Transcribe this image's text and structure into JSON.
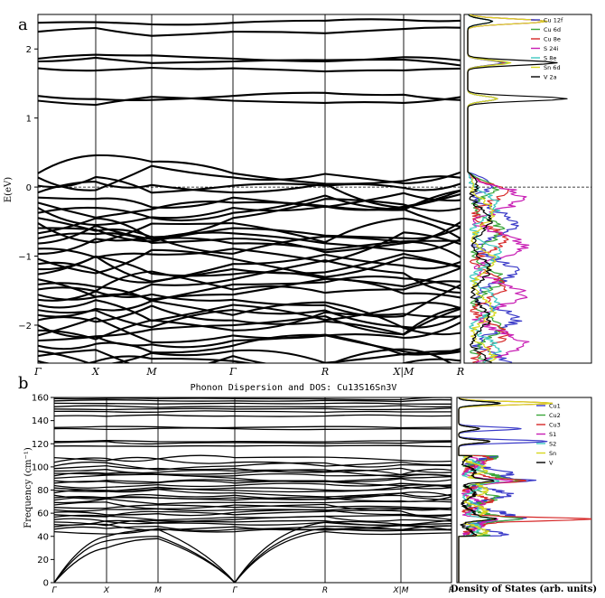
{
  "panels": [
    {
      "label": "a"
    },
    {
      "label": "b"
    }
  ],
  "chart_data": [
    {
      "type": "line",
      "title": "",
      "xlabel": "",
      "ylabel": "E(eV)",
      "ylim": [
        -2.55,
        2.5
      ],
      "y_ticks": [
        -2,
        -1,
        0,
        1,
        2
      ],
      "high_symmetry_points": [
        "Γ",
        "X",
        "M",
        "Γ",
        "R",
        "X|M",
        "R"
      ],
      "fermi_level": 0,
      "band_energies_at_gamma": [
        -2.5,
        -2.2,
        -2.0,
        -1.8,
        -1.6,
        -1.4,
        -1.2,
        -1.0,
        -0.8,
        -0.6,
        -0.4,
        0.0,
        0.2,
        1.25,
        1.3,
        1.75,
        1.85,
        2.25,
        2.4
      ],
      "dos_legend": [
        "Cu 12f",
        "Cu 6d",
        "Cu 8e",
        "S 24i",
        "S 8e",
        "Sn 6d",
        "V 2a"
      ],
      "dos_colors": [
        "#3a3ac8",
        "#3aa63a",
        "#d62828",
        "#c81eb4",
        "#3ec8c0",
        "#d8d820",
        "#000000"
      ],
      "dos_peaks_eV": [
        2.4,
        1.8,
        1.28
      ]
    },
    {
      "type": "line",
      "title": "Phonon Dispersion and DOS: Cu13S16Sn3V",
      "xlabel": "",
      "ylabel": "Frequency (cm⁻¹)",
      "ylim": [
        0,
        160
      ],
      "y_ticks": [
        0,
        20,
        40,
        60,
        80,
        100,
        120,
        140,
        160
      ],
      "high_symmetry_points": [
        "Γ",
        "X",
        "M",
        "Γ",
        "R",
        "X|M",
        "R"
      ],
      "dos_xlabel": "Density of States (arb. units)",
      "dos_legend": [
        "Cu1",
        "Cu2",
        "Cu3",
        "S1",
        "S2",
        "Sn",
        "V"
      ],
      "dos_colors": [
        "#3a3ac8",
        "#3aa63a",
        "#d62828",
        "#c81eb4",
        "#3ec8c0",
        "#d8d820",
        "#000000"
      ],
      "dos_peaks_cm1": [
        155,
        133,
        122,
        88,
        55
      ]
    }
  ]
}
